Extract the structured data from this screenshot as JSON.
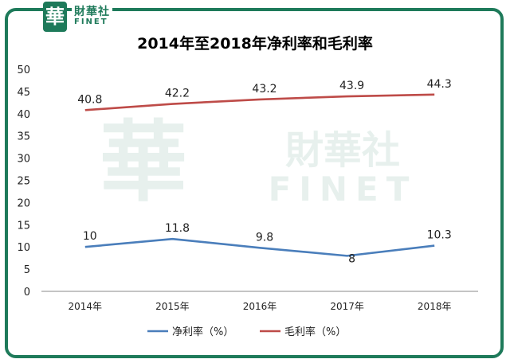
{
  "logo": {
    "seal_char": "華",
    "name_cn": "財華社",
    "name_en": "FINET"
  },
  "watermark": {
    "name_cn": "財華社",
    "name_en": "FINET"
  },
  "colors": {
    "frame": "#1e7a5a",
    "net_margin": "#4a7ebb",
    "gross_margin": "#be4b48"
  },
  "chart_data": {
    "type": "line",
    "title": "2014年至2018年净利率和毛利率",
    "categories": [
      "2014年",
      "2015年",
      "2016年",
      "2017年",
      "2018年"
    ],
    "ylim": [
      0,
      50
    ],
    "yticks": [
      0,
      5,
      10,
      15,
      20,
      25,
      30,
      35,
      40,
      45,
      50
    ],
    "series": [
      {
        "name": "净利率（%）",
        "values": [
          10,
          11.8,
          9.8,
          8,
          10.3
        ],
        "labels": [
          "10",
          "11.8",
          "9.8",
          "8",
          "10.3"
        ],
        "color": "#4a7ebb"
      },
      {
        "name": "毛利率（%）",
        "values": [
          40.8,
          42.2,
          43.2,
          43.9,
          44.3
        ],
        "labels": [
          "40.8",
          "42.2",
          "43.2",
          "43.9",
          "44.3"
        ],
        "color": "#be4b48"
      }
    ],
    "legend_position": "bottom",
    "grid": false
  }
}
